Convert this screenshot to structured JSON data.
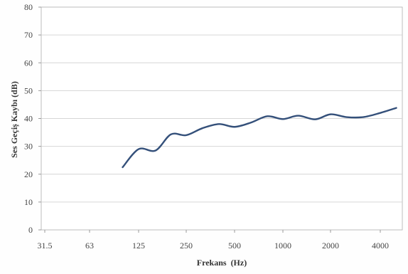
{
  "chart_data": {
    "type": "line",
    "title": "",
    "xlabel": "Frekans  (Hz)",
    "ylabel": "Ses Geçiş Kaybı (dB)",
    "ylim": [
      0,
      80
    ],
    "y_ticks": [
      "0",
      "10",
      "20",
      "30",
      "40",
      "50",
      "60",
      "70",
      "80"
    ],
    "x_scale": "log",
    "x_tick_labels": [
      "31.5",
      "63",
      "125",
      "250",
      "500",
      "1000",
      "2000",
      "4000"
    ],
    "x_tick_values": [
      31.5,
      63,
      125,
      250,
      500,
      1000,
      2000,
      4000
    ],
    "grid": "horizontal",
    "legend": "none",
    "series": [
      {
        "color": "#34507a",
        "x": [
          100,
          125,
          160,
          200,
          250,
          315,
          400,
          500,
          630,
          800,
          1000,
          1250,
          1600,
          2000,
          2500,
          3150,
          4000,
          5000
        ],
        "y": [
          22.5,
          29,
          28.5,
          34.3,
          34,
          36.5,
          38,
          37,
          38.5,
          40.8,
          39.8,
          41,
          39.7,
          41.5,
          40.5,
          40.5,
          42,
          43.8
        ]
      }
    ]
  }
}
